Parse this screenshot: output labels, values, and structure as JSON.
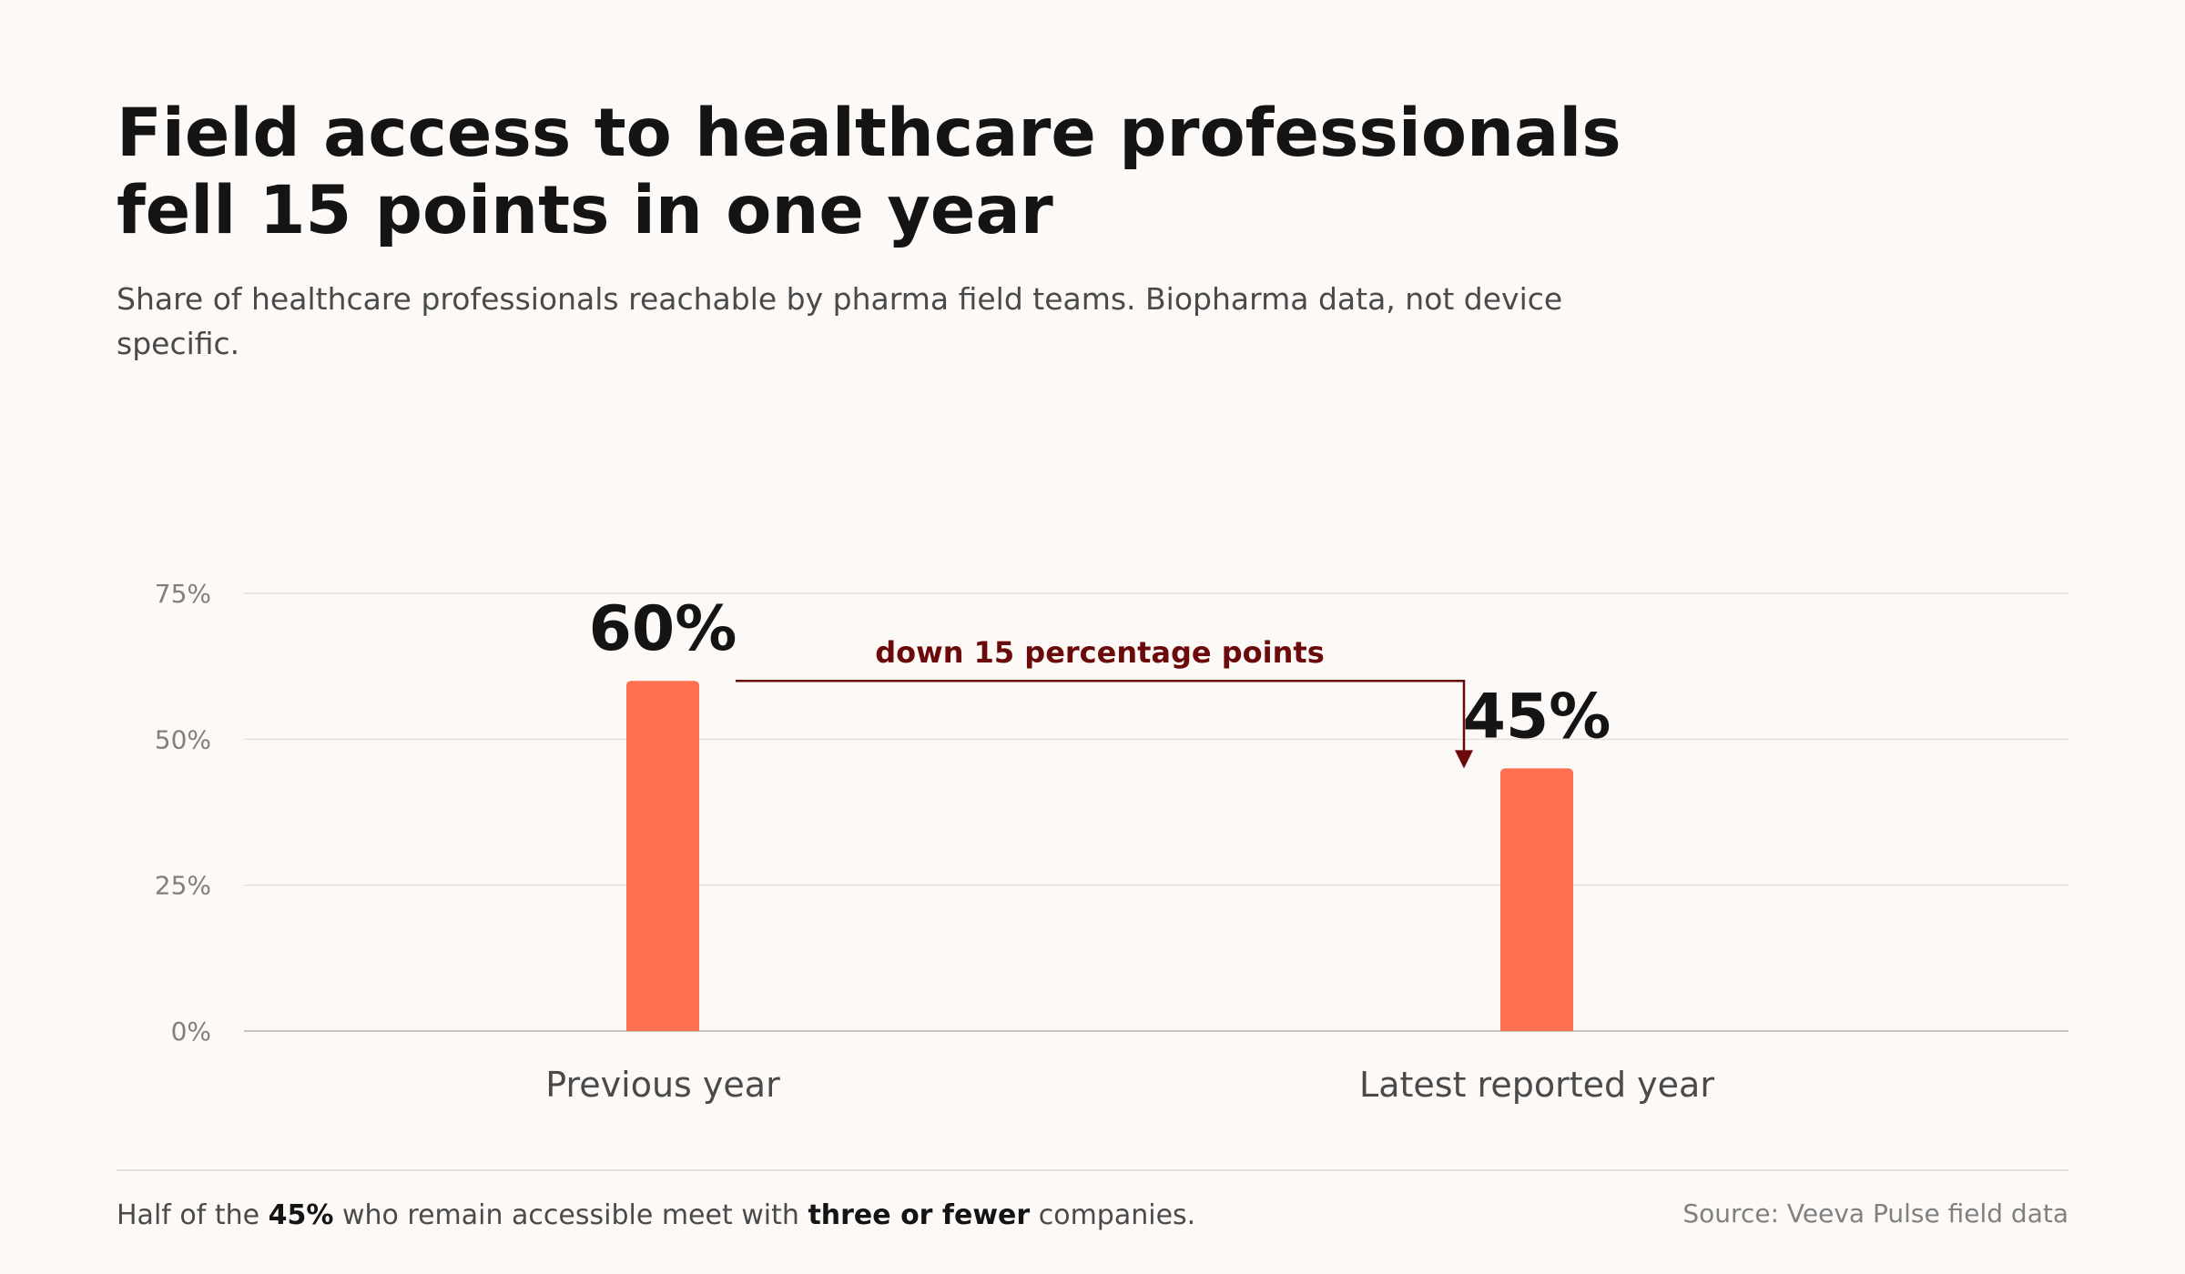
{
  "title": "Field access to healthcare professionals fell 15 points in one year",
  "subtitle": "Share of healthcare professionals reachable by pharma field teams. Biopharma data, not device specific.",
  "footnote": {
    "part1": "Half of the ",
    "bold1": "45%",
    "part2": " who remain accessible meet with ",
    "bold2": "three or fewer",
    "part3": " companies."
  },
  "source": "Source: Veeva Pulse field data",
  "colors": {
    "bar": "#ff7050",
    "annotation": "#6b0a0a",
    "grid": "#e4e0dc",
    "axis_text": "#808080",
    "label_text": "#141414",
    "category_text": "#4a4a4a"
  },
  "chart_data": {
    "type": "bar",
    "categories": [
      "Previous year",
      "Latest reported year"
    ],
    "values": [
      60,
      45
    ],
    "value_labels": [
      "60%",
      "45%"
    ],
    "title": "Field access to healthcare professionals fell 15 points in one year",
    "xlabel": "",
    "ylabel": "",
    "ylim": [
      0,
      75
    ],
    "yticks": [
      0,
      25,
      50,
      75
    ],
    "ytick_labels": [
      "0%",
      "25%",
      "50%",
      "75%"
    ],
    "grid": true,
    "annotations": [
      {
        "text": "down 15 percentage points",
        "from": 60,
        "to": 45
      }
    ]
  }
}
